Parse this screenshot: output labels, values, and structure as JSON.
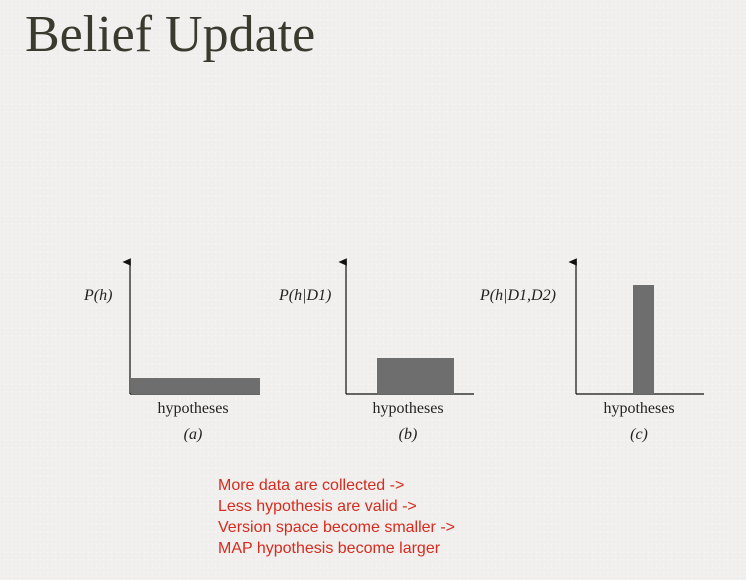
{
  "title": "Belief Update",
  "diagram": {
    "panels": [
      {
        "ylabel": "P(h)",
        "xlabel": "hypotheses",
        "letter": "(a)",
        "distribution": "uniform over all hypotheses",
        "level": 0.13
      },
      {
        "ylabel": "P(h|D1)",
        "xlabel": "hypotheses",
        "letter": "(b)",
        "distribution": "uniform over a subset of hypotheses",
        "level": 0.29
      },
      {
        "ylabel": "P(h|D1,D2)",
        "xlabel": "hypotheses",
        "letter": "(c)",
        "distribution": "concentrated on one hypothesis",
        "level": 0.87
      }
    ],
    "colors": {
      "bar": "#6e6e6e",
      "axis": "#111111"
    }
  },
  "notes": [
    "More data are collected ->",
    "Less hypothesis are valid ->",
    "Version space become smaller ->",
    "MAP hypothesis become larger"
  ],
  "colors": {
    "title": "#3a3a2e",
    "notes": "#d62b1e",
    "background": "#f1f0ee"
  }
}
